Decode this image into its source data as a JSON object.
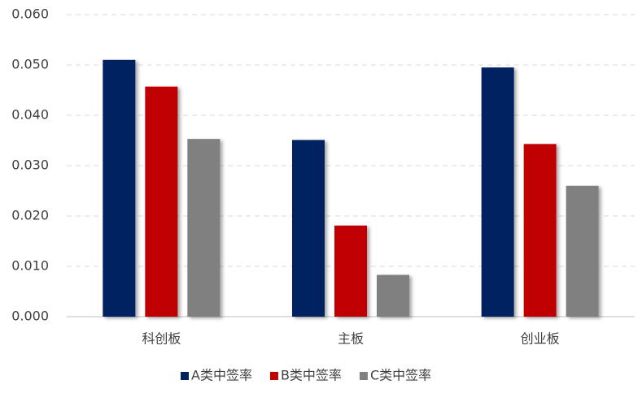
{
  "chart_data": {
    "type": "bar",
    "categories": [
      "科创板",
      "主板",
      "创业板"
    ],
    "series": [
      {
        "name": "A类中签率",
        "color": "#002060",
        "values": [
          0.051,
          0.0351,
          0.0495
        ]
      },
      {
        "name": "B类中签率",
        "color": "#c00000",
        "values": [
          0.0457,
          0.0181,
          0.0343
        ]
      },
      {
        "name": "C类中签率",
        "color": "#808080",
        "values": [
          0.0353,
          0.0083,
          0.026
        ]
      }
    ],
    "ylim": [
      0,
      0.06
    ],
    "yticks": [
      {
        "value": 0,
        "label": "0.000"
      },
      {
        "value": 0.01,
        "label": "0.010"
      },
      {
        "value": 0.02,
        "label": "0.020"
      },
      {
        "value": 0.03,
        "label": "0.030"
      },
      {
        "value": 0.04,
        "label": "0.040"
      },
      {
        "value": 0.05,
        "label": "0.050"
      },
      {
        "value": 0.06,
        "label": "0.060"
      }
    ],
    "grid": true,
    "legend": "bottom"
  }
}
